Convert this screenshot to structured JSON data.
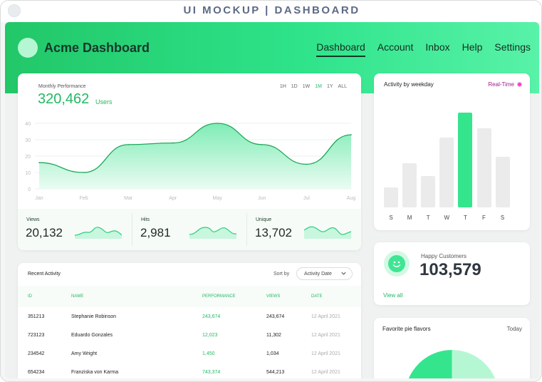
{
  "window": {
    "title": "UI MOCKUP | DASHBOARD"
  },
  "header": {
    "app_title": "Acme Dashboard",
    "nav": [
      {
        "label": "Dashboard",
        "active": true
      },
      {
        "label": "Account"
      },
      {
        "label": "Inbox"
      },
      {
        "label": "Help"
      },
      {
        "label": "Settings"
      }
    ]
  },
  "performance": {
    "label": "Monthly Performance",
    "value": "320,462",
    "unit": "Users",
    "ranges": [
      "1H",
      "1D",
      "1W",
      "1M",
      "1Y",
      "ALL"
    ],
    "active_range": "1M"
  },
  "chart_data": [
    {
      "type": "area",
      "title": "",
      "x": [
        "Jan",
        "Feb",
        "Mar",
        "Apr",
        "May",
        "Jun",
        "Jul",
        "Aug"
      ],
      "series": [
        {
          "values": [
            16,
            10,
            27,
            28,
            40,
            27,
            15,
            33
          ]
        }
      ],
      "ylim": [
        0,
        40
      ],
      "yticks": [
        0,
        10,
        20,
        30,
        40
      ],
      "grid": true,
      "color": "#2ccf7b"
    },
    {
      "type": "bar",
      "title": "Activity by weekday",
      "categories": [
        "S",
        "M",
        "T",
        "W",
        "T",
        "F",
        "S"
      ],
      "values": [
        19,
        42,
        30,
        66,
        90,
        75,
        48
      ],
      "highlight_index": 4,
      "color": "#ebebeb",
      "highlight_color": "#34e58e"
    }
  ],
  "stats": [
    {
      "label": "Views",
      "value": "20,132"
    },
    {
      "label": "Hits",
      "value": "2,981"
    },
    {
      "label": "Unique",
      "value": "13,702"
    }
  ],
  "weekday": {
    "title": "Activity by weekday",
    "realtime": "Real-Time"
  },
  "happy": {
    "label": "Happy Customers",
    "value": "103,579",
    "link": "View all",
    "icon": "smiley-icon"
  },
  "pie": {
    "title": "Favorite pie flavors",
    "period": "Today"
  },
  "activity": {
    "title": "Recent Activity",
    "sort_label": "Sort by",
    "sort_value": "Activity Date",
    "columns": [
      "ID",
      "NAME",
      "PERFORMANCE",
      "VIEWS",
      "DATE"
    ],
    "rows": [
      [
        "351213",
        "Stephanie Robinson",
        "243,674",
        "243,674",
        "12 April 2021"
      ],
      [
        "723123",
        "Eduardo Gonzales",
        "12,023",
        "11,302",
        "12 April 2021"
      ],
      [
        "234542",
        "Amy Wright",
        "1,450",
        "1,034",
        "12 April 2021"
      ],
      [
        "654234",
        "Franziska von Karma",
        "743,374",
        "544,213",
        "12 April 2021"
      ]
    ]
  },
  "colors": {
    "accent": "#24b864",
    "header_start": "#22c768",
    "header_end": "#58f2a8",
    "realtime_dot": "#ff3fbf"
  }
}
